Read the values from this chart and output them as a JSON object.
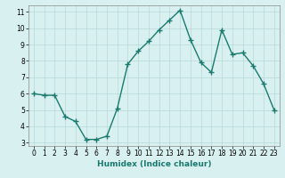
{
  "x": [
    0,
    1,
    2,
    3,
    4,
    5,
    6,
    7,
    8,
    9,
    10,
    11,
    12,
    13,
    14,
    15,
    16,
    17,
    18,
    19,
    20,
    21,
    22,
    23
  ],
  "y": [
    6.0,
    5.9,
    5.9,
    4.6,
    4.3,
    3.2,
    3.2,
    3.4,
    5.1,
    7.8,
    8.6,
    9.2,
    9.9,
    10.5,
    11.1,
    9.3,
    7.9,
    7.3,
    9.9,
    8.4,
    8.5,
    7.7,
    6.6,
    5.0
  ],
  "xlabel": "Humidex (Indice chaleur)",
  "line_color": "#1a7a6e",
  "bg_color": "#d9f0f0",
  "grid_color": "#b8d8d8",
  "ylim": [
    2.8,
    11.4
  ],
  "xlim": [
    -0.5,
    23.5
  ],
  "yticks": [
    3,
    4,
    5,
    6,
    7,
    8,
    9,
    10,
    11
  ],
  "xticks": [
    0,
    1,
    2,
    3,
    4,
    5,
    6,
    7,
    8,
    9,
    10,
    11,
    12,
    13,
    14,
    15,
    16,
    17,
    18,
    19,
    20,
    21,
    22,
    23
  ],
  "marker": "+",
  "markersize": 4,
  "linewidth": 1.0,
  "tick_fontsize": 5.5,
  "xlabel_fontsize": 6.5
}
